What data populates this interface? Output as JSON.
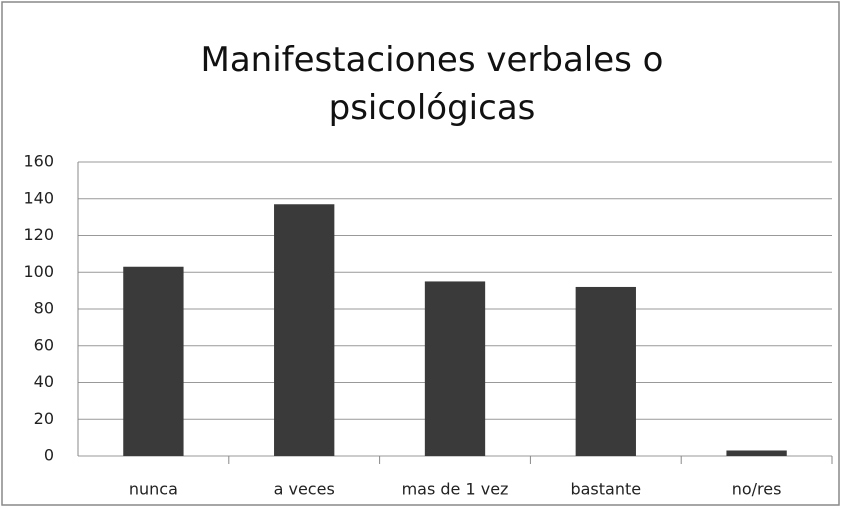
{
  "chart_data": {
    "type": "bar",
    "title": "Manifestaciones verbales o psicológicas",
    "categories": [
      "nunca",
      "a veces",
      "mas de 1 vez",
      "bastante",
      "no/res"
    ],
    "values": [
      103,
      137,
      95,
      92,
      3
    ],
    "color": "#3a3a3a",
    "ylim": [
      0,
      160
    ],
    "yticks": [
      0,
      20,
      40,
      60,
      80,
      100,
      120,
      140,
      160
    ],
    "grid": true
  }
}
